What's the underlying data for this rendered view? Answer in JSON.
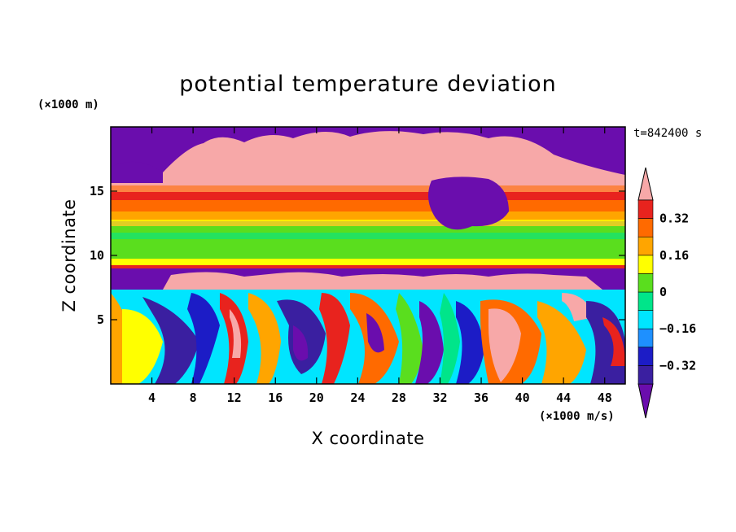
{
  "chart_data": {
    "type": "heatmap",
    "title": "potential temperature deviation",
    "xlabel": "X coordinate",
    "ylabel": "Z coordinate",
    "x_unit": "(×1000 m/s)",
    "y_unit": "(×1000 m)",
    "time_label": "t=842400 s",
    "xlim": [
      0,
      50
    ],
    "ylim": [
      0,
      20
    ],
    "x_ticks": [
      4,
      8,
      12,
      16,
      20,
      24,
      28,
      32,
      36,
      40,
      44,
      48
    ],
    "y_ticks": [
      5,
      10,
      15
    ],
    "colorbar": {
      "tick_labels": [
        "0.32",
        "0.16",
        "0",
        "−0.16",
        "−0.32"
      ],
      "tick_values": [
        0.32,
        0.16,
        0,
        -0.16,
        -0.32
      ],
      "levels": [
        -0.4,
        -0.32,
        -0.24,
        -0.16,
        -0.08,
        0,
        0.08,
        0.16,
        0.24,
        0.32,
        0.4
      ],
      "colors": [
        "#6a0dad",
        "#3a1fa0",
        "#1c1cc6",
        "#1e90ff",
        "#00e5ff",
        "#00e58a",
        "#5ade1e",
        "#ffff00",
        "#ffa500",
        "#ff6a00",
        "#e8231e",
        "#f7a8a8"
      ],
      "extend": "both"
    }
  }
}
